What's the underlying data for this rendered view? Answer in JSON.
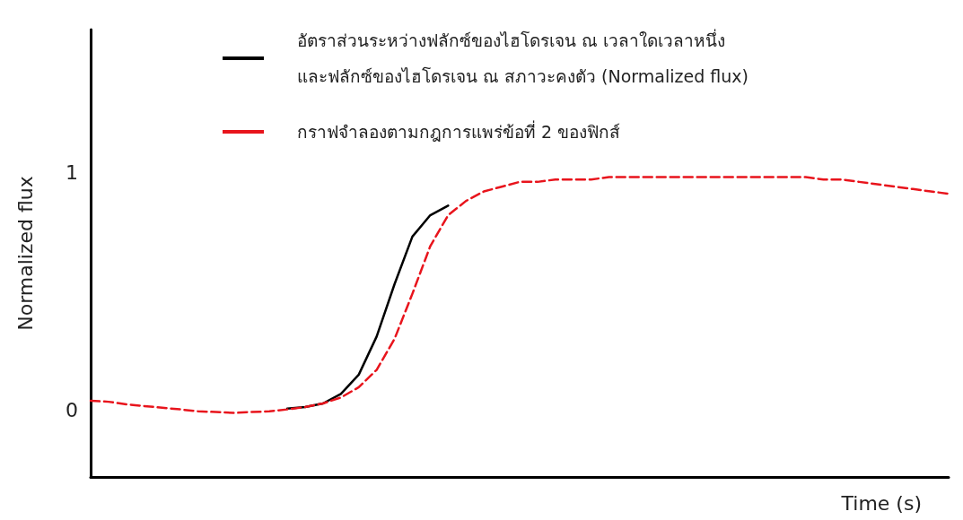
{
  "chart_data": {
    "type": "line",
    "xlabel": "Time (s)",
    "ylabel": "Normalized flux",
    "categories": [
      null,
      null,
      null,
      null,
      null,
      null,
      null,
      null,
      null,
      null,
      null,
      null,
      null,
      null,
      null,
      null,
      null,
      null,
      null,
      null,
      null,
      null,
      null,
      null,
      null,
      null,
      null,
      null,
      null,
      null,
      null,
      null,
      null,
      null,
      null,
      null,
      null,
      null,
      null,
      null,
      null,
      null,
      null,
      null,
      null,
      null,
      null,
      null,
      null
    ],
    "series": [
      {
        "name": "อัตราส่วนระหว่างฟลักซ์ของไฮโดรเจน ณ เวลาใดเวลาหนึ่ง และฟลักซ์ของไฮโดรเจน ณ สภาวะคงตัว (Normalized flux)",
        "color": "#000000",
        "line_style": "solid",
        "values": [
          null,
          null,
          null,
          null,
          null,
          null,
          null,
          null,
          null,
          null,
          null,
          0.007,
          0.014,
          0.029,
          0.069,
          0.15,
          0.31,
          0.53,
          0.73,
          0.82,
          0.86,
          null,
          null,
          null,
          null,
          null,
          null,
          null,
          null,
          null,
          null,
          null,
          null,
          null,
          null,
          null,
          null,
          null,
          null,
          null,
          null,
          null,
          null,
          null,
          null,
          null,
          null,
          null,
          null
        ]
      },
      {
        "name": "กราฟจำลองตามกฎการแพร่ข้อที่ 2 ของฟิกส์",
        "color": "#e8141c",
        "line_style": "dashed",
        "values": [
          0.04,
          0.036,
          0.025,
          0.018,
          0.011,
          0.004,
          -0.004,
          -0.007,
          -0.011,
          -0.007,
          -0.004,
          0.004,
          0.014,
          0.029,
          0.054,
          0.097,
          0.17,
          0.3,
          0.49,
          0.69,
          0.82,
          0.88,
          0.92,
          0.94,
          0.96,
          0.96,
          0.97,
          0.97,
          0.97,
          0.98,
          0.98,
          0.98,
          0.98,
          0.98,
          0.98,
          0.98,
          0.98,
          0.98,
          0.98,
          0.98,
          0.98,
          0.97,
          0.97,
          0.96,
          0.95,
          0.94,
          0.93,
          0.92,
          0.91
        ]
      }
    ],
    "ylim": [
      -0.28,
      1.6
    ],
    "yticks": [
      0,
      1
    ],
    "grid": false,
    "legend": "top",
    "marker": "none"
  }
}
